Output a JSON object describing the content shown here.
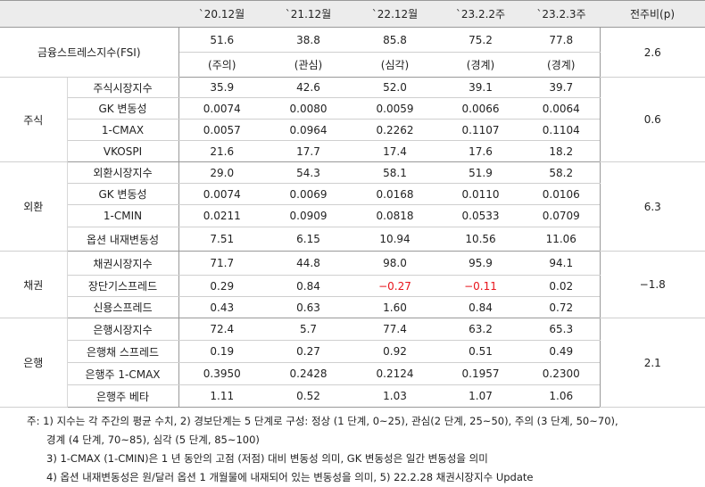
{
  "header": {
    "columns": [
      "`20.12월",
      "`21.12월",
      "`22.12월",
      "`23.2.2주",
      "`23.2.3주",
      "전주비(p)"
    ]
  },
  "fsi": {
    "label": "금융스트레스지수(FSI)",
    "values": [
      "51.6",
      "38.8",
      "85.8",
      "75.2",
      "77.8"
    ],
    "levels": [
      "(주의)",
      "(관심)",
      "(심각)",
      "(경계)",
      "(경계)"
    ],
    "change": "2.6"
  },
  "groups": [
    {
      "name": "주식",
      "change": "0.6",
      "rows": [
        {
          "label": "주식시장지수",
          "values": [
            "35.9",
            "42.6",
            "52.0",
            "39.1",
            "39.7"
          ]
        },
        {
          "label": "GK 변동성",
          "values": [
            "0.0074",
            "0.0080",
            "0.0059",
            "0.0066",
            "0.0064"
          ]
        },
        {
          "label": "1-CMAX",
          "values": [
            "0.0057",
            "0.0964",
            "0.2262",
            "0.1107",
            "0.1104"
          ]
        },
        {
          "label": "VKOSPI",
          "values": [
            "21.6",
            "17.7",
            "17.4",
            "17.6",
            "18.2"
          ]
        }
      ]
    },
    {
      "name": "외환",
      "change": "6.3",
      "rows": [
        {
          "label": "외환시장지수",
          "values": [
            "29.0",
            "54.3",
            "58.1",
            "51.9",
            "58.2"
          ]
        },
        {
          "label": "GK 변동성",
          "values": [
            "0.0074",
            "0.0069",
            "0.0168",
            "0.0110",
            "0.0106"
          ]
        },
        {
          "label": "1-CMIN",
          "values": [
            "0.0211",
            "0.0909",
            "0.0818",
            "0.0533",
            "0.0709"
          ]
        },
        {
          "label": "옵션 내재변동성",
          "values": [
            "7.51",
            "6.15",
            "10.94",
            "10.56",
            "11.06"
          ]
        }
      ]
    },
    {
      "name": "채권",
      "change": "−1.8",
      "rows": [
        {
          "label": "채권시장지수",
          "values": [
            "71.7",
            "44.8",
            "98.0",
            "95.9",
            "94.1"
          ]
        },
        {
          "label": "장단기스프레드",
          "values": [
            "0.29",
            "0.84",
            "−0.27",
            "−0.11",
            "0.02"
          ]
        },
        {
          "label": "신용스프레드",
          "values": [
            "0.43",
            "0.63",
            "1.60",
            "0.84",
            "0.72"
          ]
        }
      ]
    },
    {
      "name": "은행",
      "change": "2.1",
      "rows": [
        {
          "label": "은행시장지수",
          "values": [
            "72.4",
            "5.7",
            "77.4",
            "63.2",
            "65.3"
          ]
        },
        {
          "label": "은행채 스프레드",
          "values": [
            "0.19",
            "0.27",
            "0.92",
            "0.51",
            "0.49"
          ]
        },
        {
          "label": "은행주 1-CMAX",
          "values": [
            "0.3950",
            "0.2428",
            "0.2124",
            "0.1957",
            "0.2300"
          ]
        },
        {
          "label": "은행주 베타",
          "values": [
            "1.11",
            "0.52",
            "1.03",
            "1.07",
            "1.06"
          ]
        }
      ]
    }
  ],
  "notes": [
    "주: 1) 지수는 각 주간의 평균 수치, 2) 경보단계는 5 단계로 구성: 정상 (1 단계, 0~25), 관심(2 단계, 25~50), 주의 (3 단계, 50~70),",
    "경계 (4 단계, 70~85), 심각 (5 단계, 85~100)",
    "3) 1-CMAX (1-CMIN)은 1 년 동안의 고점 (저점) 대비 변동성 의미, GK 변동성은 일간 변동성을 의미",
    "4) 옵션 내재변동성은 원/달러 옵션 1 개월물에 내재되어 있는 변동성을 의미, 5) 22.2.28 채권시장지수 Update"
  ]
}
